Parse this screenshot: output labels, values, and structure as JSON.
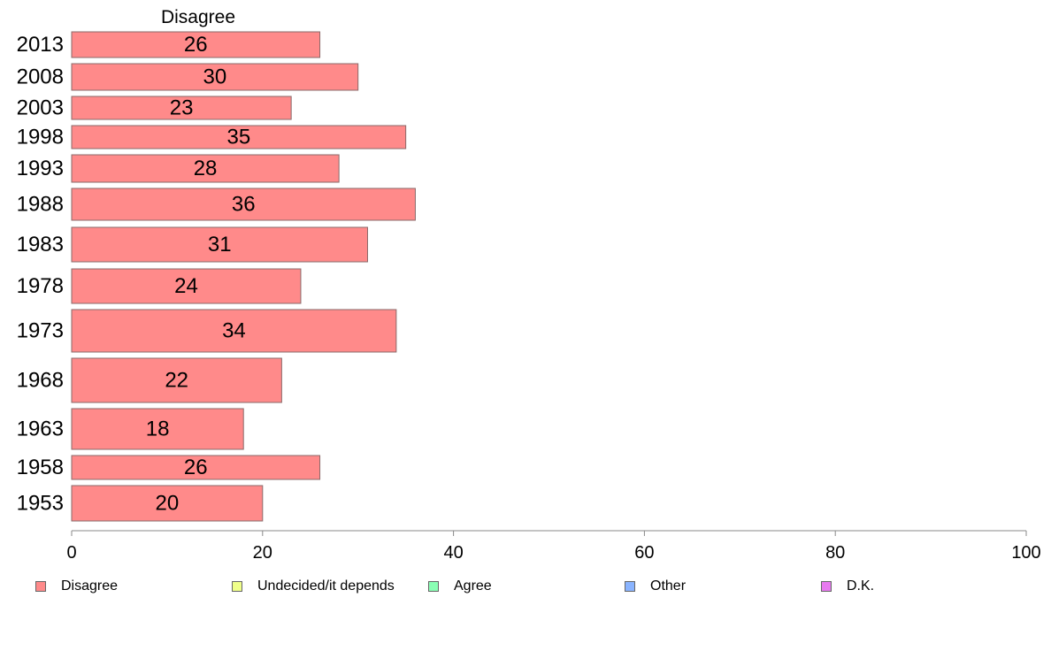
{
  "chart_data": {
    "type": "bar",
    "orientation": "horizontal",
    "title": "Disagree",
    "categories": [
      "2013",
      "2008",
      "2003",
      "1998",
      "1993",
      "1988",
      "1983",
      "1978",
      "1973",
      "1968",
      "1963",
      "1958",
      "1953"
    ],
    "series": [
      {
        "name": "Disagree",
        "values": [
          26,
          30,
          23,
          35,
          28,
          36,
          31,
          24,
          34,
          22,
          18,
          26,
          20
        ],
        "color": "#ff8a8a"
      }
    ],
    "xlim": [
      0,
      100
    ],
    "xticks": [
      "0",
      "20",
      "40",
      "60",
      "80",
      "100"
    ],
    "grid": false,
    "legend_position": "bottom"
  },
  "legend": [
    {
      "label": "Disagree",
      "color": "#ff8a8a"
    },
    {
      "label": "Undecided/it depends",
      "color": "#f0ff8a"
    },
    {
      "label": "Agree",
      "color": "#8affb4"
    },
    {
      "label": "Other",
      "color": "#8ab4ff"
    },
    {
      "label": "D.K.",
      "color": "#e87af0"
    }
  ]
}
